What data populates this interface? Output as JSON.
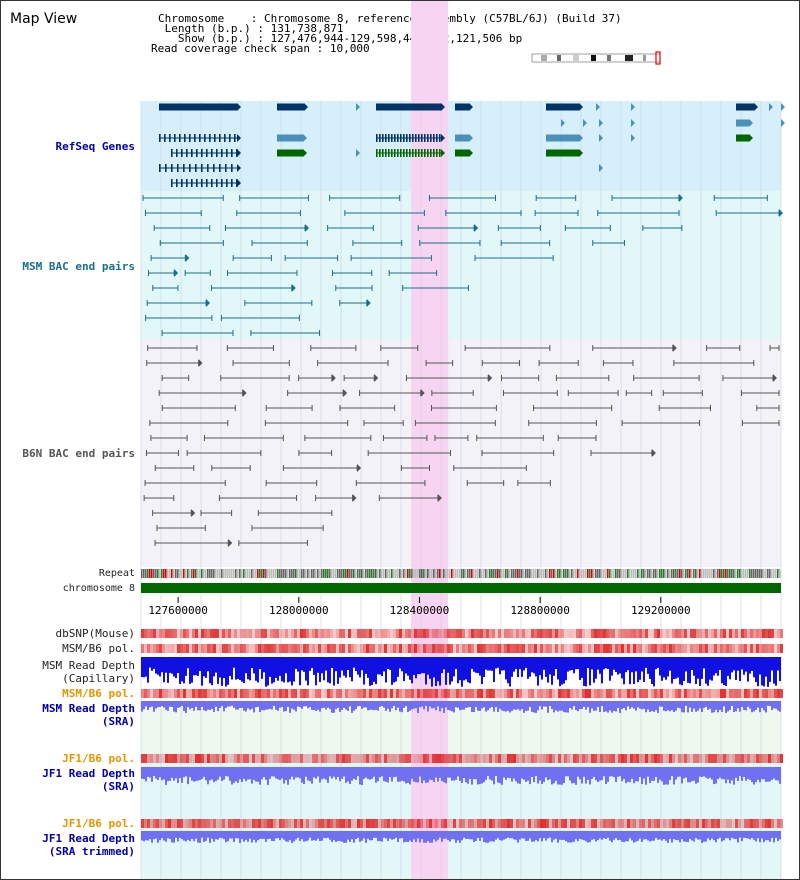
{
  "title": "Map View",
  "info": {
    "chromosome_key": "Chromosome",
    "chromosome_val": "Chromosome 8, reference assembly (C57BL/6J) (Build 37)",
    "length_key": "Length (b.p.)",
    "length_val": "131,738,871",
    "show_key": "Show (b.p.)",
    "show_val": "127,476,944-129,598,449 : 2,121,506 bp",
    "coverage_key": "Read coverage check span",
    "coverage_val": "10,000"
  },
  "tracks": {
    "refseq": "RefSeq Genes",
    "msm_bac": "MSM BAC end pairs",
    "b6n_bac": "B6N BAC end pairs",
    "repeat": "Repeat",
    "chromosome": "chromosome 8",
    "dbsnp": "dbSNP(Mouse)",
    "msm_b6_pol_1": "MSM/B6 pol.",
    "msm_depth_cap_1": "MSM Read Depth",
    "msm_depth_cap_2": "(Capillary)",
    "msm_b6_pol_2": "MSM/B6 pol.",
    "msm_depth_sra_1": "MSM Read Depth",
    "msm_depth_sra_2": "(SRA)",
    "jf1_b6_pol_1": "JF1/B6 pol.",
    "jf1_depth_sra_1": "JF1 Read Depth",
    "jf1_depth_sra_2": "(SRA)",
    "jf1_b6_pol_2": "JF1/B6 pol.",
    "jf1_depth_trim_1": "JF1 Read Depth",
    "jf1_depth_trim_2": "(SRA trimmed)"
  },
  "axis": {
    "ticks": [
      "127600000",
      "128000000",
      "128400000",
      "128800000",
      "129200000"
    ],
    "tick_values": [
      127600000,
      128000000,
      128400000,
      128800000,
      129200000
    ],
    "range": [
      127476944,
      129598449
    ]
  },
  "colors": {
    "refseq_bg": "#d6effa",
    "msm_bg": "#e2f7f7",
    "b6n_bg": "#f2f2f8",
    "highlight": "#f7d5f2",
    "gene_dark": "#003366",
    "gene_mid": "#4a90b8",
    "gene_green": "#006600",
    "msm_line": "#1a6f8a",
    "b6n_line": "#555555",
    "chrom_bar": "#006600",
    "snp_red": "#e03030",
    "depth_blue": "#1010e0",
    "depth_light": "#7070f0",
    "orange_label": "#e69500",
    "blue_label": "#0000aa"
  },
  "highlight_range": [
    128372000,
    128495000
  ]
}
